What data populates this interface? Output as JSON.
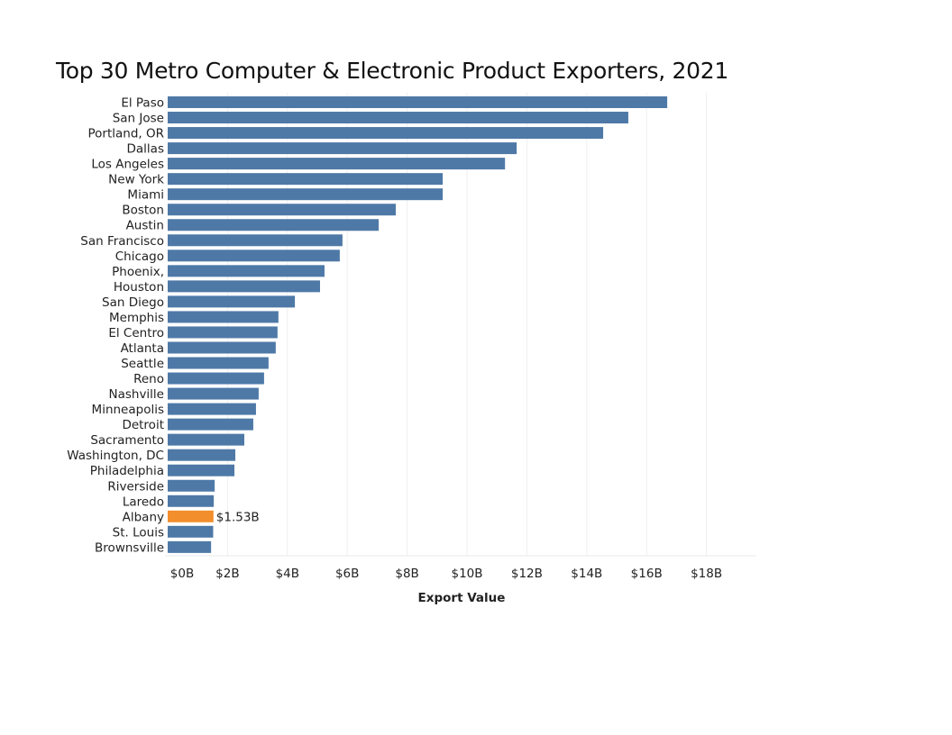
{
  "chart_data": {
    "type": "bar",
    "orientation": "horizontal",
    "title": "Top 30 Metro Computer & Electronic Product Exporters, 2021",
    "xlabel": "Export Value",
    "ylabel": "",
    "xlim": [
      0,
      19.6
    ],
    "x_unit": "billions USD",
    "x_ticks": [
      0,
      2,
      4,
      6,
      8,
      10,
      12,
      14,
      16,
      18
    ],
    "x_tick_labels": [
      "$0B",
      "$2B",
      "$4B",
      "$6B",
      "$8B",
      "$10B",
      "$12B",
      "$14B",
      "$16B",
      "$18B"
    ],
    "grid": "vertical",
    "legend": "none",
    "colors": {
      "default": "#4E79A7",
      "highlight": "#F28E2B"
    },
    "highlight_category": "Albany",
    "categories": [
      "El Paso",
      "San Jose",
      "Portland, OR",
      "Dallas",
      "Los Angeles",
      "New York",
      "Miami",
      "Boston",
      "Austin",
      "San Francisco",
      "Chicago",
      "Phoenix,",
      "Houston",
      "San Diego",
      "Memphis",
      "El Centro",
      "Atlanta",
      "Seattle",
      "Reno",
      "Nashville",
      "Minneapolis",
      "Detroit",
      "Sacramento",
      "Washington, DC",
      "Philadelphia",
      "Riverside",
      "Laredo",
      "Albany",
      "St. Louis",
      "Brownsville"
    ],
    "values": [
      16.69,
      15.39,
      14.55,
      11.66,
      11.27,
      9.19,
      9.19,
      7.62,
      7.05,
      5.84,
      5.75,
      5.24,
      5.09,
      4.25,
      3.7,
      3.67,
      3.61,
      3.37,
      3.22,
      3.04,
      2.95,
      2.86,
      2.56,
      2.26,
      2.23,
      1.57,
      1.54,
      1.53,
      1.52,
      1.45
    ],
    "data_labels": [
      {
        "category": "Albany",
        "text": "$1.53B"
      }
    ]
  }
}
